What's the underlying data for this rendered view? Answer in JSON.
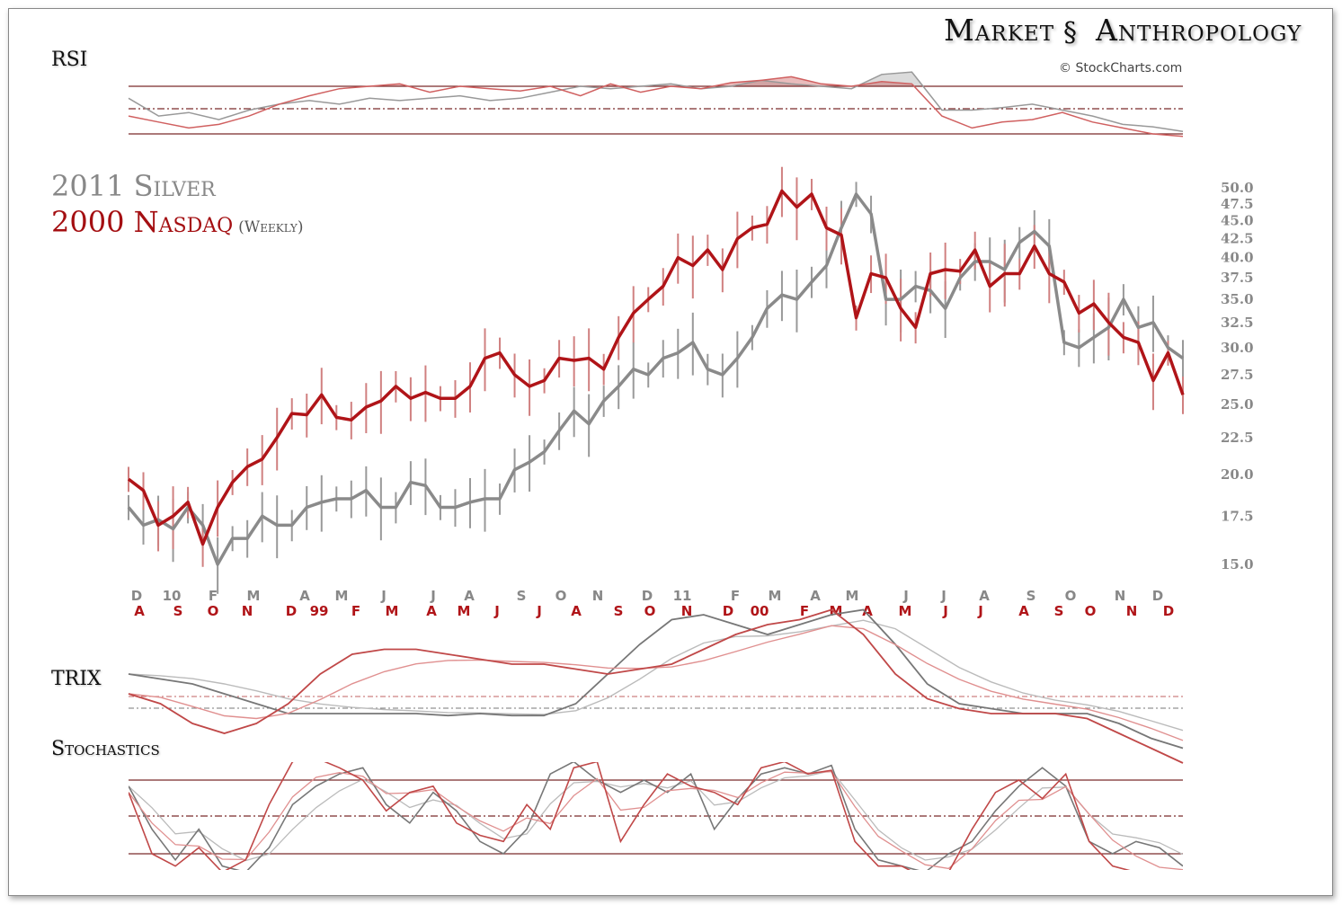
{
  "brand": {
    "left": "Market",
    "right": "Anthropology",
    "credit": "© StockCharts.com"
  },
  "titles": {
    "silver": "2011 Silver",
    "nasdaq": "2000 Nasdaq",
    "freq": "(Weekly)"
  },
  "panels": {
    "rsi": "RSI",
    "trix": "TRIX",
    "stoch": "Stochastics"
  },
  "colors": {
    "silver": "#8a8a8a",
    "nasdaq": "#b01418",
    "nasdaq_light": "#e0a0a0",
    "silver_light": "#c8c8c8",
    "ref": "#8b3a3a"
  },
  "chart_data": [
    {
      "type": "line",
      "title": "2011 Silver vs 2000 Nasdaq (Weekly)",
      "yscale": "log",
      "ylim": [
        14.5,
        51
      ],
      "yticks": [
        "50.0",
        "47.5",
        "45.0",
        "42.5",
        "40.0",
        "37.5",
        "35.0",
        "32.5",
        "30.0",
        "27.5",
        "25.0",
        "22.5",
        "20.0",
        "17.5",
        "15.0"
      ],
      "xticks_silver": [
        "D",
        "10",
        "F",
        "M",
        "A",
        "M",
        "J",
        "J",
        "A",
        "S",
        "O",
        "N",
        "D",
        "11",
        "F",
        "M",
        "A",
        "M",
        "J",
        "J",
        "A",
        "S",
        "O",
        "N",
        "D"
      ],
      "xticks_nasdaq": [
        "A",
        "S",
        "O",
        "N",
        "D",
        "99",
        "F",
        "M",
        "A",
        "M",
        "J",
        "J",
        "A",
        "S",
        "O",
        "N",
        "D",
        "00",
        "F",
        "M",
        "A",
        "M",
        "J",
        "J",
        "A",
        "S",
        "O",
        "N",
        "D"
      ],
      "series": [
        {
          "name": "2011 Silver",
          "values": [
            18.0,
            17.0,
            17.3,
            16.8,
            18.0,
            17.0,
            15.0,
            16.3,
            16.3,
            17.5,
            17.0,
            17.0,
            18.0,
            18.3,
            18.5,
            18.5,
            19.0,
            18.0,
            18.0,
            19.5,
            19.3,
            18.0,
            18.0,
            18.3,
            18.5,
            18.5,
            20.3,
            20.8,
            21.5,
            23.0,
            24.5,
            23.5,
            25.3,
            26.5,
            28.0,
            27.5,
            29.0,
            29.5,
            30.5,
            28.0,
            27.5,
            29.0,
            31.0,
            34.0,
            35.5,
            35.0,
            37.0,
            39.0,
            44.0,
            49.0,
            46.0,
            35.0,
            35.0,
            36.5,
            36.0,
            34.0,
            37.5,
            39.5,
            39.5,
            38.5,
            42.0,
            43.5,
            41.5,
            30.5,
            30.0,
            31.0,
            32.0,
            35.0,
            32.0,
            32.5,
            30.0,
            29.0
          ]
        },
        {
          "name": "2000 Nasdaq",
          "values": [
            19.7,
            19.0,
            17.0,
            17.5,
            18.3,
            16.0,
            18.0,
            19.5,
            20.5,
            21.0,
            22.5,
            24.3,
            24.2,
            25.8,
            24.0,
            23.8,
            24.8,
            25.3,
            26.5,
            25.5,
            26.0,
            25.5,
            25.5,
            26.5,
            29.0,
            29.5,
            27.5,
            26.5,
            27.0,
            29.0,
            28.8,
            29.0,
            28.0,
            31.0,
            33.5,
            35.0,
            36.5,
            40.0,
            39.0,
            41.0,
            38.5,
            42.5,
            44.0,
            44.5,
            49.5,
            47.0,
            49.0,
            44.0,
            43.0,
            33.0,
            38.0,
            37.5,
            34.0,
            32.0,
            38.0,
            38.5,
            38.3,
            41.0,
            36.5,
            38.0,
            38.0,
            41.5,
            38.0,
            37.0,
            33.5,
            34.5,
            32.5,
            31.0,
            30.5,
            27.0,
            29.5,
            25.8
          ]
        }
      ]
    },
    {
      "type": "line",
      "title": "RSI",
      "ylim": [
        25,
        85
      ],
      "reference": [
        70,
        50,
        30
      ],
      "series": [
        {
          "name": "Silver RSI",
          "values": [
            60,
            45,
            48,
            42,
            50,
            55,
            58,
            55,
            60,
            58,
            60,
            62,
            58,
            60,
            65,
            70,
            68,
            70,
            72,
            68,
            70,
            75,
            72,
            70,
            68,
            80,
            82,
            50,
            50,
            52,
            55,
            50,
            45,
            38,
            36,
            32
          ]
        },
        {
          "name": "Nasdaq RSI",
          "values": [
            45,
            40,
            35,
            38,
            45,
            55,
            62,
            68,
            70,
            72,
            65,
            70,
            68,
            66,
            70,
            62,
            72,
            65,
            70,
            68,
            73,
            75,
            78,
            72,
            70,
            74,
            72,
            45,
            35,
            40,
            42,
            48,
            40,
            35,
            30,
            28
          ]
        }
      ]
    },
    {
      "type": "line",
      "title": "TRIX",
      "ylim": [
        -0.6,
        1.0
      ],
      "reference": [
        0
      ],
      "series": [
        {
          "name": "Silver TRIX",
          "values": [
            0.3,
            0.25,
            0.2,
            0.1,
            0.0,
            -0.1,
            -0.1,
            -0.1,
            -0.1,
            -0.1,
            -0.12,
            -0.1,
            -0.12,
            -0.12,
            0.0,
            0.3,
            0.6,
            0.85,
            0.9,
            0.8,
            0.7,
            0.8,
            0.9,
            0.95,
            0.6,
            0.2,
            0.0,
            -0.05,
            -0.1,
            -0.1,
            -0.1,
            -0.2,
            -0.35,
            -0.45
          ]
        },
        {
          "name": "Nasdaq TRIX",
          "values": [
            0.1,
            0.0,
            -0.2,
            -0.3,
            -0.2,
            0.0,
            0.3,
            0.5,
            0.55,
            0.55,
            0.5,
            0.45,
            0.4,
            0.4,
            0.35,
            0.3,
            0.35,
            0.4,
            0.55,
            0.7,
            0.8,
            0.85,
            0.95,
            0.7,
            0.3,
            0.05,
            -0.05,
            -0.1,
            -0.1,
            -0.1,
            -0.15,
            -0.3,
            -0.45,
            -0.6
          ]
        }
      ]
    },
    {
      "type": "line",
      "title": "Stochastics",
      "ylim": [
        0,
        100
      ],
      "reference": [
        80,
        50,
        20
      ],
      "series": [
        {
          "name": "Silver %K",
          "values": [
            75,
            40,
            15,
            40,
            10,
            5,
            25,
            60,
            75,
            85,
            90,
            60,
            45,
            70,
            55,
            30,
            20,
            40,
            85,
            95,
            80,
            70,
            80,
            70,
            85,
            40,
            65,
            85,
            90,
            85,
            92,
            40,
            15,
            10,
            5,
            20,
            30,
            55,
            75,
            90,
            75,
            30,
            20,
            30,
            25,
            10
          ]
        },
        {
          "name": "Nasdaq %K",
          "values": [
            70,
            20,
            10,
            25,
            5,
            15,
            60,
            95,
            98,
            90,
            80,
            55,
            70,
            75,
            45,
            35,
            30,
            60,
            40,
            90,
            95,
            30,
            60,
            85,
            75,
            70,
            60,
            90,
            95,
            85,
            88,
            30,
            10,
            10,
            0,
            5,
            40,
            70,
            80,
            65,
            85,
            30,
            10,
            5,
            0,
            5
          ]
        }
      ]
    }
  ]
}
